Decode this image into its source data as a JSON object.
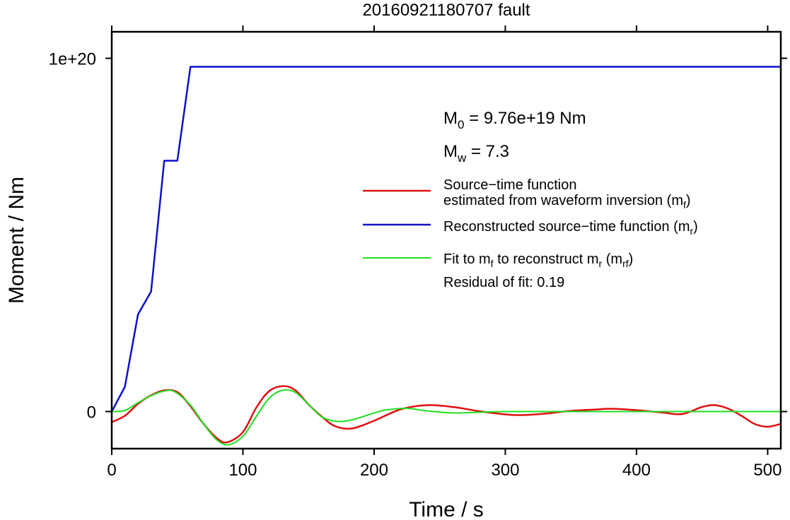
{
  "chart_data": {
    "type": "line",
    "title": "20160921180707 fault",
    "xlabel": "Time / s",
    "ylabel": "Moment / Nm",
    "xlim": [
      0,
      510
    ],
    "ylim": [
      -1.05e+19,
      1.075e+20
    ],
    "x_ticks": [
      0,
      100,
      200,
      300,
      400,
      500
    ],
    "x_tick_labels": [
      "0",
      "100",
      "200",
      "300",
      "400",
      "500"
    ],
    "y_ticks": [
      0,
      1e+20
    ],
    "y_tick_labels": [
      "0",
      "1e+20"
    ],
    "grid": false,
    "annotations": {
      "m0": {
        "base": "M",
        "sub": "0",
        "rest": " = 9.76e+19 Nm"
      },
      "mw": {
        "base": "M",
        "sub": "w",
        "rest": " = 7.3"
      },
      "residual": "Residual of fit: 0.19"
    },
    "legend": {
      "placement": "right",
      "entries": [
        {
          "series": "mf",
          "line1": "Source−time function",
          "line2_pre": "estimated from waveform inversion (m",
          "line2_sub": "f",
          "line2_post": ")"
        },
        {
          "series": "mr",
          "pre": "Reconstructed source−time function (m",
          "sub": "r",
          "post": ")"
        },
        {
          "series": "mrf",
          "pre": "Fit to m",
          "sub": "f",
          "mid": " to reconstruct m",
          "sub2": "r",
          "mid2": " (m",
          "sub3": "rf",
          "post": ")"
        }
      ]
    },
    "series": [
      {
        "id": "mr",
        "color": "#1010c8",
        "x": [
          0,
          10,
          20,
          30,
          40,
          50,
          60,
          510
        ],
        "y": [
          0,
          7e+18,
          2.75e+19,
          3.4e+19,
          7.1e+19,
          7.1e+19,
          9.76e+19,
          9.76e+19
        ]
      },
      {
        "id": "mf",
        "color": "#e01010",
        "x": [
          0,
          10,
          20,
          30,
          40,
          50,
          60,
          70,
          80,
          88,
          100,
          110,
          120,
          131,
          140,
          150,
          160,
          170,
          183,
          200,
          220,
          240,
          260,
          280,
          300,
          312,
          330,
          350,
          370,
          380,
          400,
          420,
          435,
          450,
          460,
          470,
          480,
          490,
          500,
          510
        ],
        "y": [
          -3e+18,
          -1.2e+18,
          2.2e+18,
          4.6e+18,
          6e+18,
          5.5e+18,
          1.5e+18,
          -3.5e+18,
          -7.5e+18,
          -8.7e+18,
          -5.8e+18,
          1e+18,
          5.8e+18,
          7.2e+18,
          6e+18,
          2e+18,
          -1.4e+18,
          -4.1e+18,
          -4.8e+18,
          -2.6e+18,
          6e+17,
          1.8e+18,
          1.3e+18,
          1e+17,
          -8e+17,
          -1e+18,
          -6e+17,
          2e+17,
          6e+17,
          8e+17,
          4e+17,
          -3e+17,
          -7e+17,
          1.3e+18,
          1.8e+18,
          8e+17,
          -1.2e+18,
          -3.5e+18,
          -4.3e+18,
          -3.5e+18
        ]
      },
      {
        "id": "mrf",
        "color": "#20e020",
        "x": [
          0,
          10,
          20,
          30,
          40,
          48,
          60,
          70,
          80,
          89,
          100,
          110,
          120,
          130,
          140,
          150,
          160,
          170,
          180,
          190,
          200,
          210,
          225,
          240,
          260,
          280,
          300,
          340,
          400,
          460,
          510
        ],
        "y": [
          0,
          3e+17,
          2.5e+18,
          4.5e+18,
          5.8e+18,
          5.6e+18,
          1.8e+18,
          -3.5e+18,
          -8e+18,
          -9.4e+18,
          -7e+18,
          -1.5e+18,
          3.8e+18,
          6e+18,
          5.4e+18,
          2e+18,
          -1.5e+18,
          -2.7e+18,
          -2.6e+18,
          -1.6e+18,
          -4e+17,
          5e+17,
          9e+17,
          2e+17,
          -4e+17,
          -2e+17,
          0,
          0,
          0,
          0,
          0
        ]
      }
    ]
  }
}
